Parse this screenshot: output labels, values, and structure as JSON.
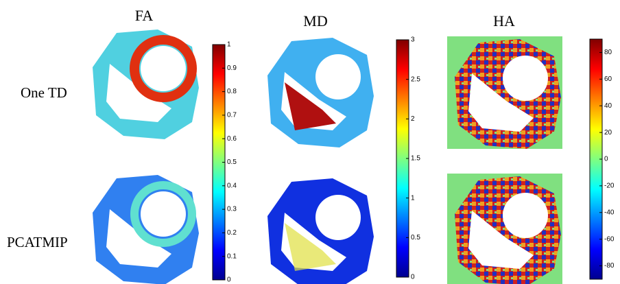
{
  "columns": [
    {
      "title": "FA",
      "colorbar": {
        "lim": [
          0,
          1
        ],
        "ticks": [
          0,
          0.1,
          0.2,
          0.3,
          0.4,
          0.5,
          0.6,
          0.7,
          0.8,
          0.9,
          1
        ]
      }
    },
    {
      "title": "MD",
      "colorbar": {
        "lim": [
          0,
          3
        ],
        "ticks": [
          0,
          0.5,
          1,
          1.5,
          2,
          2.5,
          3
        ]
      }
    },
    {
      "title": "HA",
      "colorbar": {
        "lim": [
          -90,
          90
        ],
        "ticks": [
          -80,
          -60,
          -40,
          -20,
          0,
          20,
          40,
          60,
          80
        ]
      }
    }
  ],
  "rows": [
    "One TD",
    "PCATMIP"
  ]
}
